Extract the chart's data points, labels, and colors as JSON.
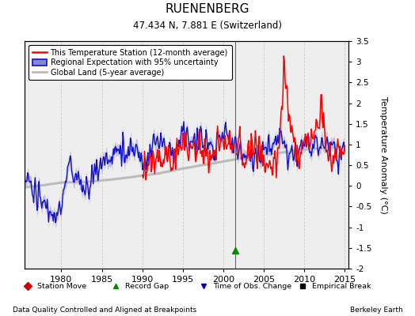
{
  "title": "RUENENBERG",
  "subtitle": "47.434 N, 7.881 E (Switzerland)",
  "ylabel": "Temperature Anomaly (°C)",
  "footer_left": "Data Quality Controlled and Aligned at Breakpoints",
  "footer_right": "Berkeley Earth",
  "xlim": [
    1975.5,
    2015.5
  ],
  "ylim": [
    -2.0,
    3.5
  ],
  "yticks": [
    -2,
    -1.5,
    -1,
    -0.5,
    0,
    0.5,
    1,
    1.5,
    2,
    2.5,
    3,
    3.5
  ],
  "xticks": [
    1980,
    1985,
    1990,
    1995,
    2000,
    2005,
    2010,
    2015
  ],
  "vertical_line_x": 2001.5,
  "record_gap_x": 2001.5,
  "record_gap_y": -1.57,
  "bg_color": "#eeeeee",
  "grid_color": "#cccccc",
  "station_line_color": "#ff0000",
  "regional_line_color": "#1111cc",
  "regional_fill_color": "#8888cc",
  "global_line_color": "#bbbbbb",
  "legend_labels": [
    "This Temperature Station (12-month average)",
    "Regional Expectation with 95% uncertainty",
    "Global Land (5-year average)"
  ],
  "bottom_markers": [
    {
      "label": "Station Move",
      "marker": "D",
      "color": "#cc0000"
    },
    {
      "label": "Record Gap",
      "marker": "^",
      "color": "#008800"
    },
    {
      "label": "Time of Obs. Change",
      "marker": "v",
      "color": "#0000cc"
    },
    {
      "label": "Empirical Break",
      "marker": "s",
      "color": "#000000"
    }
  ]
}
